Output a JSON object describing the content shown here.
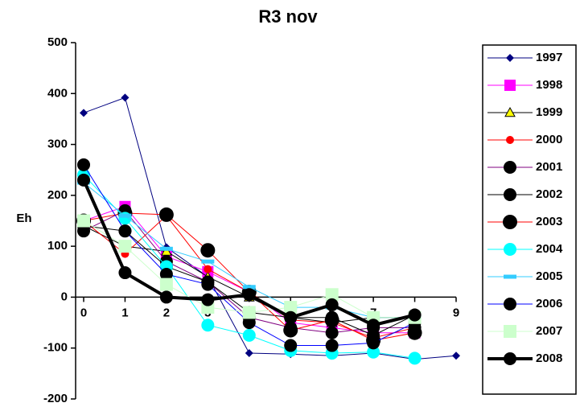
{
  "chart_data": {
    "type": "line",
    "title": "R3 nov",
    "y_label": "Eh",
    "x": [
      0,
      1,
      2,
      3,
      4,
      5,
      6,
      7,
      8,
      9
    ],
    "xlim": [
      0,
      9
    ],
    "xticks": [
      0,
      1,
      2,
      3,
      4,
      5,
      6,
      7,
      8,
      9
    ],
    "ylim": [
      -200,
      500
    ],
    "yticks": [
      -200,
      -100,
      0,
      100,
      200,
      300,
      400,
      500
    ],
    "legend": "right",
    "series": [
      {
        "name": "1997",
        "color": "#000080",
        "marker": "diamond",
        "marker_color": "#000080",
        "marker_size": 5,
        "line_width": 1,
        "values": [
          362,
          392,
          98,
          40,
          -110,
          -112,
          -115,
          -110,
          -122,
          -115
        ]
      },
      {
        "name": "1998",
        "color": "#ff00ff",
        "marker": "square",
        "marker_color": "#ff00ff",
        "marker_size": 7,
        "line_width": 1,
        "values": [
          150,
          178,
          80,
          50,
          10,
          -50,
          -60,
          -70,
          -70,
          null
        ]
      },
      {
        "name": "1999",
        "color": "#000000",
        "marker": "triangle",
        "marker_color": "#ffff00",
        "marker_size": 6,
        "line_width": 1,
        "values": [
          140,
          100,
          90,
          40,
          0,
          -40,
          -50,
          -40,
          -40,
          null
        ]
      },
      {
        "name": "2000",
        "color": "#ff0000",
        "marker": "circle",
        "marker_color": "#ff0000",
        "marker_size": 5,
        "line_width": 1,
        "values": [
          150,
          85,
          160,
          55,
          10,
          -45,
          -50,
          -80,
          -60,
          null
        ]
      },
      {
        "name": "2001",
        "color": "#800080",
        "marker": "circle",
        "marker_color": "#000000",
        "marker_size": 8,
        "line_width": 1,
        "values": [
          130,
          170,
          70,
          30,
          -40,
          -60,
          -70,
          -60,
          -60,
          null
        ]
      },
      {
        "name": "2002",
        "color": "#000000",
        "marker": "circle",
        "marker_color": "#000000",
        "marker_size": 8,
        "line_width": 1,
        "values": [
          140,
          130,
          60,
          30,
          -30,
          -40,
          -40,
          -75,
          -35,
          null
        ]
      },
      {
        "name": "2003",
        "color": "#ff0000",
        "marker": "circle",
        "marker_color": "#000000",
        "marker_size": 9,
        "line_width": 1,
        "values": [
          150,
          165,
          162,
          92,
          10,
          -65,
          -45,
          -85,
          -70,
          null
        ]
      },
      {
        "name": "2004",
        "color": "#00ffff",
        "marker": "circle",
        "marker_color": "#00ffff",
        "marker_size": 8,
        "line_width": 1,
        "values": [
          240,
          155,
          60,
          -55,
          -75,
          -105,
          -110,
          -108,
          -120,
          null
        ]
      },
      {
        "name": "2005",
        "color": "#33ccff",
        "marker": "dash",
        "marker_color": "#33ccff",
        "marker_size": 8,
        "line_width": 1,
        "values": [
          225,
          160,
          95,
          70,
          20,
          -20,
          -20,
          -40,
          -40,
          null
        ]
      },
      {
        "name": "2006",
        "color": "#0000ff",
        "marker": "circle",
        "marker_color": "#000000",
        "marker_size": 8,
        "line_width": 1,
        "values": [
          260,
          130,
          45,
          25,
          -50,
          -95,
          -95,
          -90,
          -50,
          null
        ]
      },
      {
        "name": "2007",
        "color": "#ccffcc",
        "marker": "square",
        "marker_color": "#ccffcc",
        "marker_size": 8,
        "line_width": 1,
        "values": [
          150,
          100,
          25,
          -20,
          -30,
          -20,
          5,
          -40,
          -40,
          null
        ]
      },
      {
        "name": "2008",
        "color": "#000000",
        "marker": "circle",
        "marker_color": "#000000",
        "marker_size": 8,
        "line_width": 4,
        "values": [
          230,
          48,
          0,
          -5,
          5,
          -40,
          -15,
          -55,
          -35,
          null
        ]
      }
    ]
  }
}
